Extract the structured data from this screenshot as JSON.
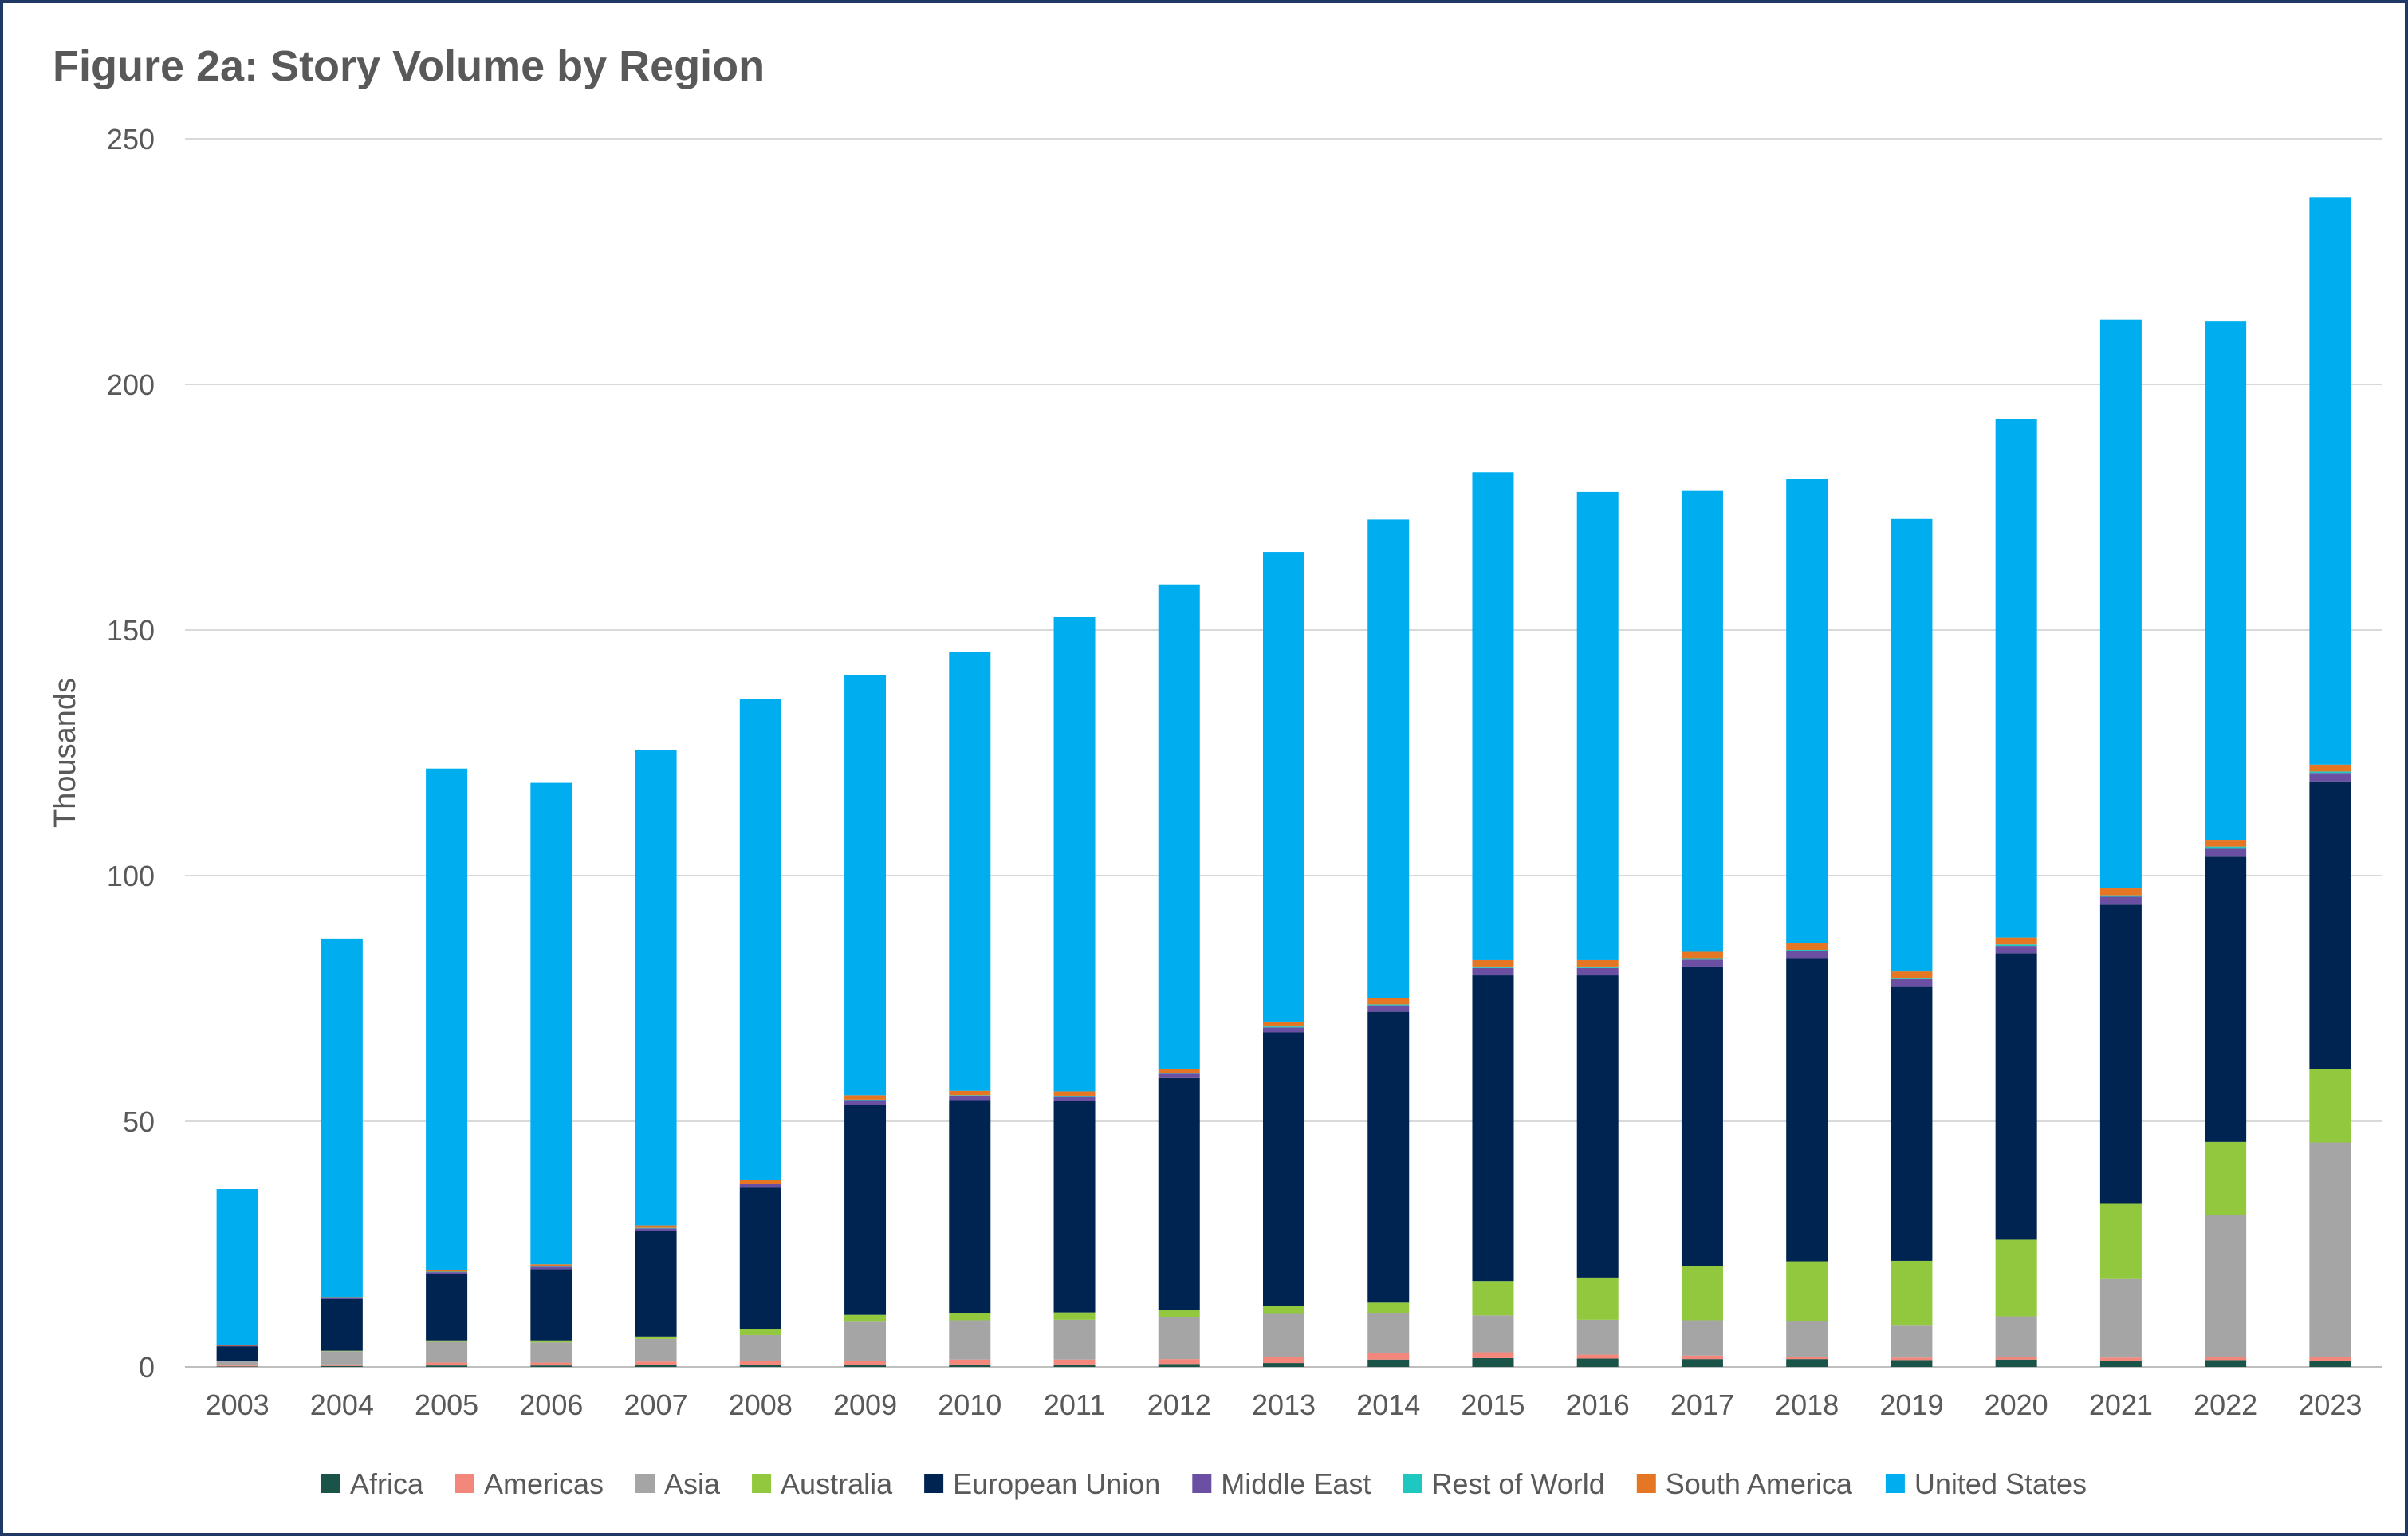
{
  "title": "Figure 2a: Story Volume by Region",
  "chart_data": {
    "type": "bar",
    "stacked": true,
    "title": "Figure 2a: Story Volume by Region",
    "xlabel": "",
    "ylabel": "Thousands",
    "ylim": [
      0,
      250
    ],
    "yticks": [
      0,
      50,
      100,
      150,
      200,
      250
    ],
    "grid": true,
    "legend_position": "bottom",
    "categories": [
      "2003",
      "2004",
      "2005",
      "2006",
      "2007",
      "2008",
      "2009",
      "2010",
      "2011",
      "2012",
      "2013",
      "2014",
      "2015",
      "2016",
      "2017",
      "2018",
      "2019",
      "2020",
      "2021",
      "2022",
      "2023"
    ],
    "series": [
      {
        "name": "Africa",
        "color": "#1a5448",
        "values": [
          0.1,
          0.2,
          0.3,
          0.3,
          0.4,
          0.4,
          0.4,
          0.5,
          0.5,
          0.6,
          0.8,
          1.5,
          1.8,
          1.7,
          1.6,
          1.6,
          1.4,
          1.5,
          1.3,
          1.4,
          1.3
        ]
      },
      {
        "name": "Americas",
        "color": "#f4877b",
        "values": [
          0.2,
          0.3,
          0.6,
          0.6,
          0.7,
          0.8,
          0.9,
          1.0,
          1.0,
          1.0,
          1.2,
          1.3,
          1.2,
          0.8,
          0.7,
          0.5,
          0.5,
          0.6,
          0.6,
          0.6,
          0.7
        ]
      },
      {
        "name": "Asia",
        "color": "#a5a5a5",
        "values": [
          0.9,
          2.7,
          4.2,
          4.1,
          4.6,
          5.3,
          7.9,
          8.0,
          8.1,
          8.6,
          8.8,
          8.2,
          7.5,
          7.1,
          7.2,
          7.2,
          6.5,
          8.2,
          16.0,
          29.0,
          43.7
        ]
      },
      {
        "name": "Australia",
        "color": "#92c83e",
        "values": [
          0.0,
          0.1,
          0.3,
          0.4,
          0.5,
          1.2,
          1.4,
          1.5,
          1.5,
          1.4,
          1.6,
          2.1,
          7.0,
          8.6,
          11.0,
          12.2,
          13.2,
          15.6,
          15.3,
          14.8,
          15.0
        ]
      },
      {
        "name": "European Union",
        "color": "#002451",
        "values": [
          3.0,
          10.5,
          13.5,
          14.5,
          21.4,
          28.8,
          42.8,
          43.3,
          43.1,
          47.2,
          55.7,
          59.2,
          62.2,
          61.5,
          61.0,
          61.7,
          55.9,
          58.3,
          60.9,
          58.2,
          58.5
        ]
      },
      {
        "name": "Middle East",
        "color": "#6a4fa3",
        "values": [
          0.1,
          0.2,
          0.4,
          0.5,
          0.6,
          0.7,
          0.9,
          0.9,
          0.9,
          0.9,
          1.0,
          1.3,
          1.5,
          1.5,
          1.4,
          1.4,
          1.4,
          1.5,
          1.6,
          1.6,
          1.7
        ]
      },
      {
        "name": "Rest of World",
        "color": "#1fc7c1",
        "values": [
          0.0,
          0.0,
          0.1,
          0.1,
          0.1,
          0.1,
          0.1,
          0.1,
          0.1,
          0.1,
          0.2,
          0.2,
          0.3,
          0.3,
          0.3,
          0.3,
          0.3,
          0.3,
          0.3,
          0.3,
          0.3
        ]
      },
      {
        "name": "South America",
        "color": "#e57724",
        "values": [
          0.1,
          0.2,
          0.4,
          0.4,
          0.5,
          0.7,
          0.9,
          0.9,
          0.9,
          0.9,
          1.0,
          1.2,
          1.3,
          1.3,
          1.3,
          1.3,
          1.3,
          1.4,
          1.4,
          1.4,
          1.4
        ]
      },
      {
        "name": "United States",
        "color": "#00aeef",
        "values": [
          31.8,
          73.0,
          102.0,
          98.0,
          96.8,
          98.0,
          85.6,
          89.3,
          96.5,
          98.6,
          95.6,
          97.5,
          99.3,
          95.3,
          93.8,
          94.5,
          92.1,
          105.6,
          115.8,
          105.5,
          115.5
        ]
      }
    ]
  }
}
